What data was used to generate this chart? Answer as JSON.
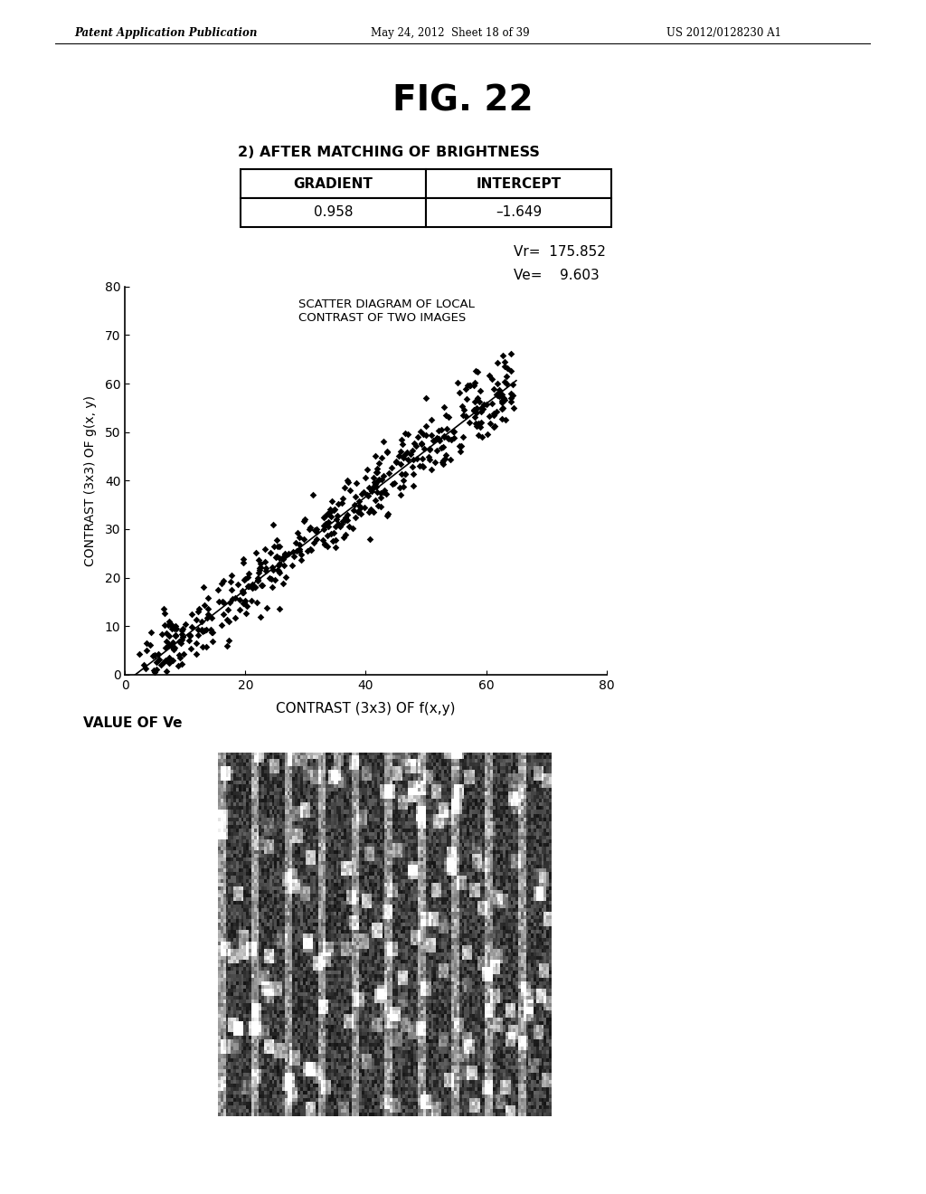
{
  "page_header_left": "Patent Application Publication",
  "page_header_mid": "May 24, 2012  Sheet 18 of 39",
  "page_header_right": "US 2012/0128230 A1",
  "fig_title": "FIG. 22",
  "subtitle": "2) AFTER MATCHING OF BRIGHTNESS",
  "table_headers": [
    "GRADIENT",
    "INTERCEPT"
  ],
  "table_values": [
    "0.958",
    "–1.649"
  ],
  "vr_text": "Vr=  175.852",
  "ve_text": "Ve=    9.603",
  "scatter_title_line1": "SCATTER DIAGRAM OF LOCAL",
  "scatter_title_line2": "CONTRAST OF TWO IMAGES",
  "xlabel": "CONTRAST (3x3) OF f(x,y)",
  "ylabel": "CONTRAST (3x3) OF g(x, y)",
  "xlim": [
    0,
    80
  ],
  "ylim": [
    0,
    80
  ],
  "xticks": [
    0,
    20,
    40,
    60,
    80
  ],
  "yticks": [
    0,
    10,
    20,
    30,
    40,
    50,
    60,
    70,
    80
  ],
  "gradient": 0.958,
  "intercept": -1.649,
  "bottom_label": "VALUE OF Ve",
  "bg_color": "#ffffff",
  "text_color": "#000000",
  "scatter_color": "#000000",
  "line_color": "#000000"
}
